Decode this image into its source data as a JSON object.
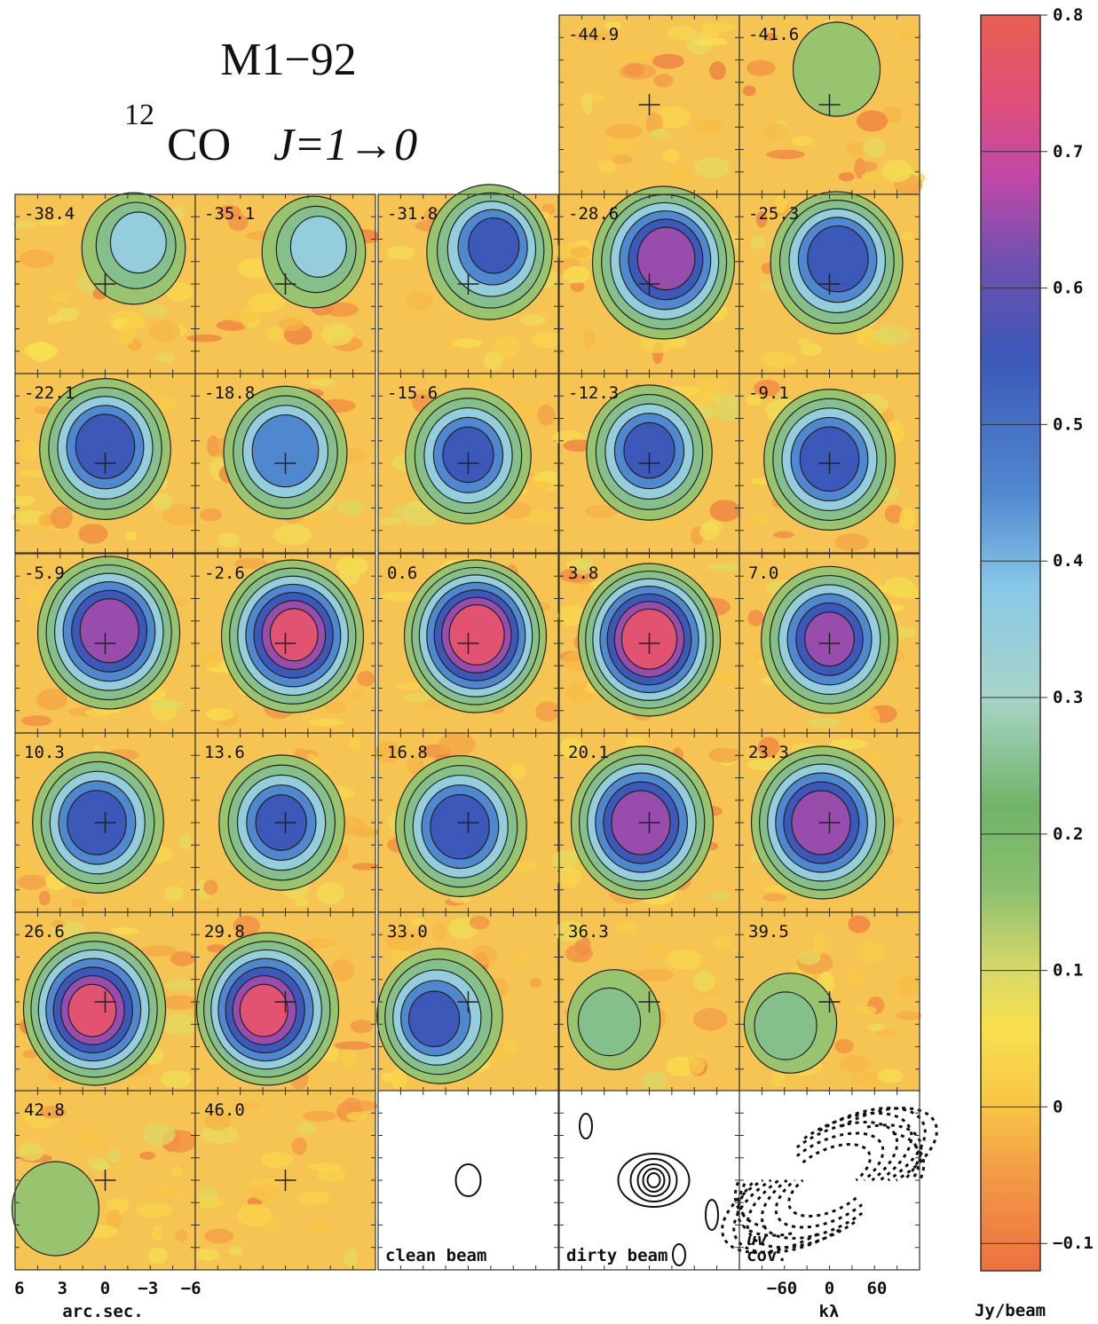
{
  "figure": {
    "title": "M1−92",
    "subtitle": {
      "sup": "12",
      "molecule": "CO",
      "transition": "J=1→0"
    },
    "channel_maps": [
      "-44.9",
      "-41.6",
      "-38.4",
      "-35.1",
      "-31.8",
      "-28.6",
      "-25.3",
      "-22.1",
      "-18.8",
      "-15.6",
      "-12.3",
      "-9.1",
      "-5.9",
      "-2.6",
      "0.6",
      "3.8",
      "7.0",
      "10.3",
      "13.6",
      "16.8",
      "20.1",
      "23.3",
      "26.6",
      "29.8",
      "33.0",
      "36.3",
      "39.5",
      "42.8",
      "46.0"
    ],
    "beam_panels": [
      "clean beam",
      "dirty beam"
    ],
    "uv_panel": [
      "uv",
      "cov."
    ],
    "offset_axis": {
      "label": "arc.sec.",
      "lim": [
        6.3,
        -6.3
      ],
      "ticks": [
        6,
        3,
        0,
        {
          "value": -3,
          "label": "−3"
        },
        {
          "value": -6,
          "label": "−6"
        }
      ]
    },
    "uv_axis": {
      "label": "kλ",
      "lim": [
        -114,
        114
      ],
      "ticks": [
        {
          "value": -60,
          "label": "−60"
        },
        0,
        60
      ]
    },
    "colorbar": {
      "label": "Jy/beam",
      "ylim": [
        -0.12,
        0.8
      ],
      "yticks": [
        0.8,
        0.7,
        0.6,
        0.5,
        0.4,
        0.3,
        0.2,
        0.1,
        0,
        {
          "value": -0.1,
          "label": "−0.1"
        }
      ]
    }
  }
}
